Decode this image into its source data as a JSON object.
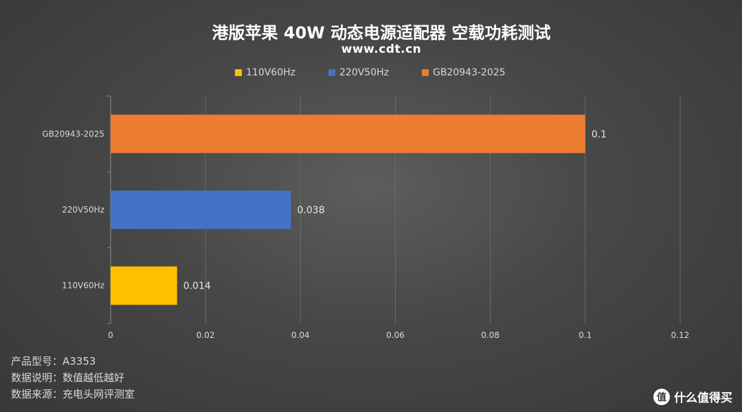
{
  "title": "港版苹果 40W 动态电源适配器 空载功耗测试",
  "subtitle": "www.cdt.cn",
  "legend": [
    {
      "label": "110V60Hz",
      "color": "#ffc000"
    },
    {
      "label": "220V50Hz",
      "color": "#4472c4"
    },
    {
      "label": "GB20943-2025",
      "color": "#ed7d31"
    }
  ],
  "chart_data": {
    "type": "bar",
    "orientation": "horizontal",
    "categories": [
      "GB20943-2025",
      "220V50Hz",
      "110V60Hz"
    ],
    "values": [
      0.1,
      0.038,
      0.014
    ],
    "value_labels": [
      "0.1",
      "0.038",
      "0.014"
    ],
    "colors": [
      "#ed7d31",
      "#4472c4",
      "#ffc000"
    ],
    "xlim": [
      0,
      0.12
    ],
    "xticks": [
      "0",
      "0.02",
      "0.04",
      "0.06",
      "0.08",
      "0.1",
      "0.12"
    ],
    "grid": true,
    "legend_position": "top"
  },
  "info": {
    "model": "产品型号：A3353",
    "note": "数据说明：数值越低越好",
    "source": "数据来源：充电头网评测室"
  },
  "watermark": {
    "icon": "值",
    "text": "什么值得买"
  }
}
